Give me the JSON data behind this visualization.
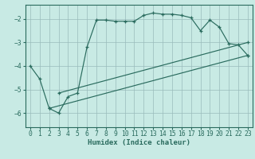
{
  "bg_color": "#c8eae4",
  "line_color": "#2a6b5e",
  "grid_color": "#99bbbb",
  "xlabel": "Humidex (Indice chaleur)",
  "xlabel_fontsize": 6.5,
  "tick_fontsize": 5.8,
  "xlim": [
    -0.5,
    23.5
  ],
  "ylim": [
    -6.6,
    -1.4
  ],
  "yticks": [
    -6,
    -5,
    -4,
    -3,
    -2
  ],
  "xticks": [
    0,
    1,
    2,
    3,
    4,
    5,
    6,
    7,
    8,
    9,
    10,
    11,
    12,
    13,
    14,
    15,
    16,
    17,
    18,
    19,
    20,
    21,
    22,
    23
  ],
  "line1_x": [
    0,
    1,
    2,
    3,
    4,
    5,
    6,
    7,
    8,
    9,
    10,
    11,
    12,
    13,
    14,
    15,
    16,
    17,
    18,
    19,
    20,
    21,
    22,
    23
  ],
  "line1_y": [
    -4.0,
    -4.55,
    -5.8,
    -6.0,
    -5.3,
    -5.15,
    -3.2,
    -2.05,
    -2.05,
    -2.1,
    -2.1,
    -2.1,
    -1.85,
    -1.75,
    -1.8,
    -1.8,
    -1.85,
    -1.95,
    -2.5,
    -2.05,
    -2.35,
    -3.05,
    -3.1,
    -3.55
  ],
  "line2_x": [
    2,
    23
  ],
  "line2_y": [
    -5.8,
    -3.55
  ],
  "line3_x": [
    3,
    23
  ],
  "line3_y": [
    -5.15,
    -3.0
  ]
}
